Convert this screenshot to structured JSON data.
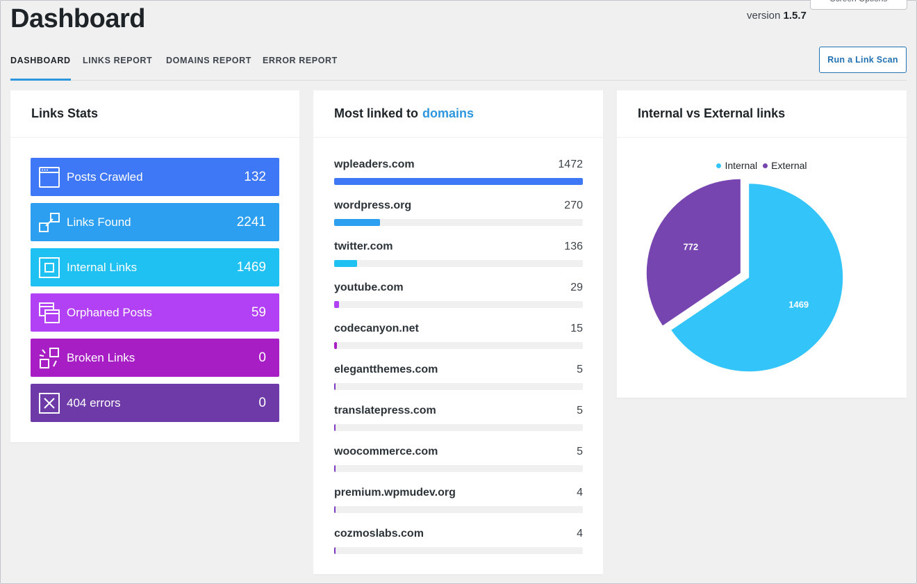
{
  "header": {
    "title": "Dashboard",
    "version_prefix": "version",
    "version_number": "1.5.7",
    "screen_options_label": "Screen Options"
  },
  "tabs": [
    {
      "label": "DASHBOARD",
      "active": true
    },
    {
      "label": "LINKS REPORT",
      "active": false
    },
    {
      "label": "DOMAINS REPORT",
      "active": false
    },
    {
      "label": "ERROR REPORT",
      "active": false
    }
  ],
  "scan_button_label": "Run a Link Scan",
  "links_stats": {
    "title": "Links Stats",
    "items": [
      {
        "label": "Posts Crawled",
        "value": "132",
        "icon": "browser-window-icon",
        "color": "#3f78f6"
      },
      {
        "label": "Links Found",
        "value": "2241",
        "icon": "link-icon",
        "color": "#2c9ff0"
      },
      {
        "label": "Internal Links",
        "value": "1469",
        "icon": "internal-link-icon",
        "color": "#1fc0f2"
      },
      {
        "label": "Orphaned Posts",
        "value": "59",
        "icon": "stacked-windows-icon",
        "color": "#b240f4"
      },
      {
        "label": "Broken Links",
        "value": "0",
        "icon": "broken-link-icon",
        "color": "#a71fc4"
      },
      {
        "label": "404 errors",
        "value": "0",
        "icon": "x-box-icon",
        "color": "#6e3aa8"
      }
    ]
  },
  "domains": {
    "title_prefix": "Most linked to",
    "title_accent": "domains",
    "max": 1472,
    "items": [
      {
        "name": "wpleaders.com",
        "count": 1472,
        "color": "#3f78f6"
      },
      {
        "name": "wordpress.org",
        "count": 270,
        "color": "#2c9ff0"
      },
      {
        "name": "twitter.com",
        "count": 136,
        "color": "#1fc0f2"
      },
      {
        "name": "youtube.com",
        "count": 29,
        "color": "#b240f4"
      },
      {
        "name": "codecanyon.net",
        "count": 15,
        "color": "#a71fc4"
      },
      {
        "name": "elegantthemes.com",
        "count": 5,
        "color": "#7b3ac0"
      },
      {
        "name": "translatepress.com",
        "count": 5,
        "color": "#7b3ac0"
      },
      {
        "name": "woocommerce.com",
        "count": 5,
        "color": "#7b3ac0"
      },
      {
        "name": "premium.wpmudev.org",
        "count": 4,
        "color": "#7b3ac0"
      },
      {
        "name": "cozmoslabs.com",
        "count": 4,
        "color": "#7b3ac0"
      }
    ]
  },
  "chart_card": {
    "title": "Internal vs External links"
  },
  "chart_data": {
    "type": "pie",
    "title": "Internal vs External links",
    "legend": "top",
    "categories": [
      "Internal",
      "External"
    ],
    "values": [
      1469,
      772
    ],
    "colors": [
      "#33c4fa",
      "#7745b0"
    ]
  }
}
